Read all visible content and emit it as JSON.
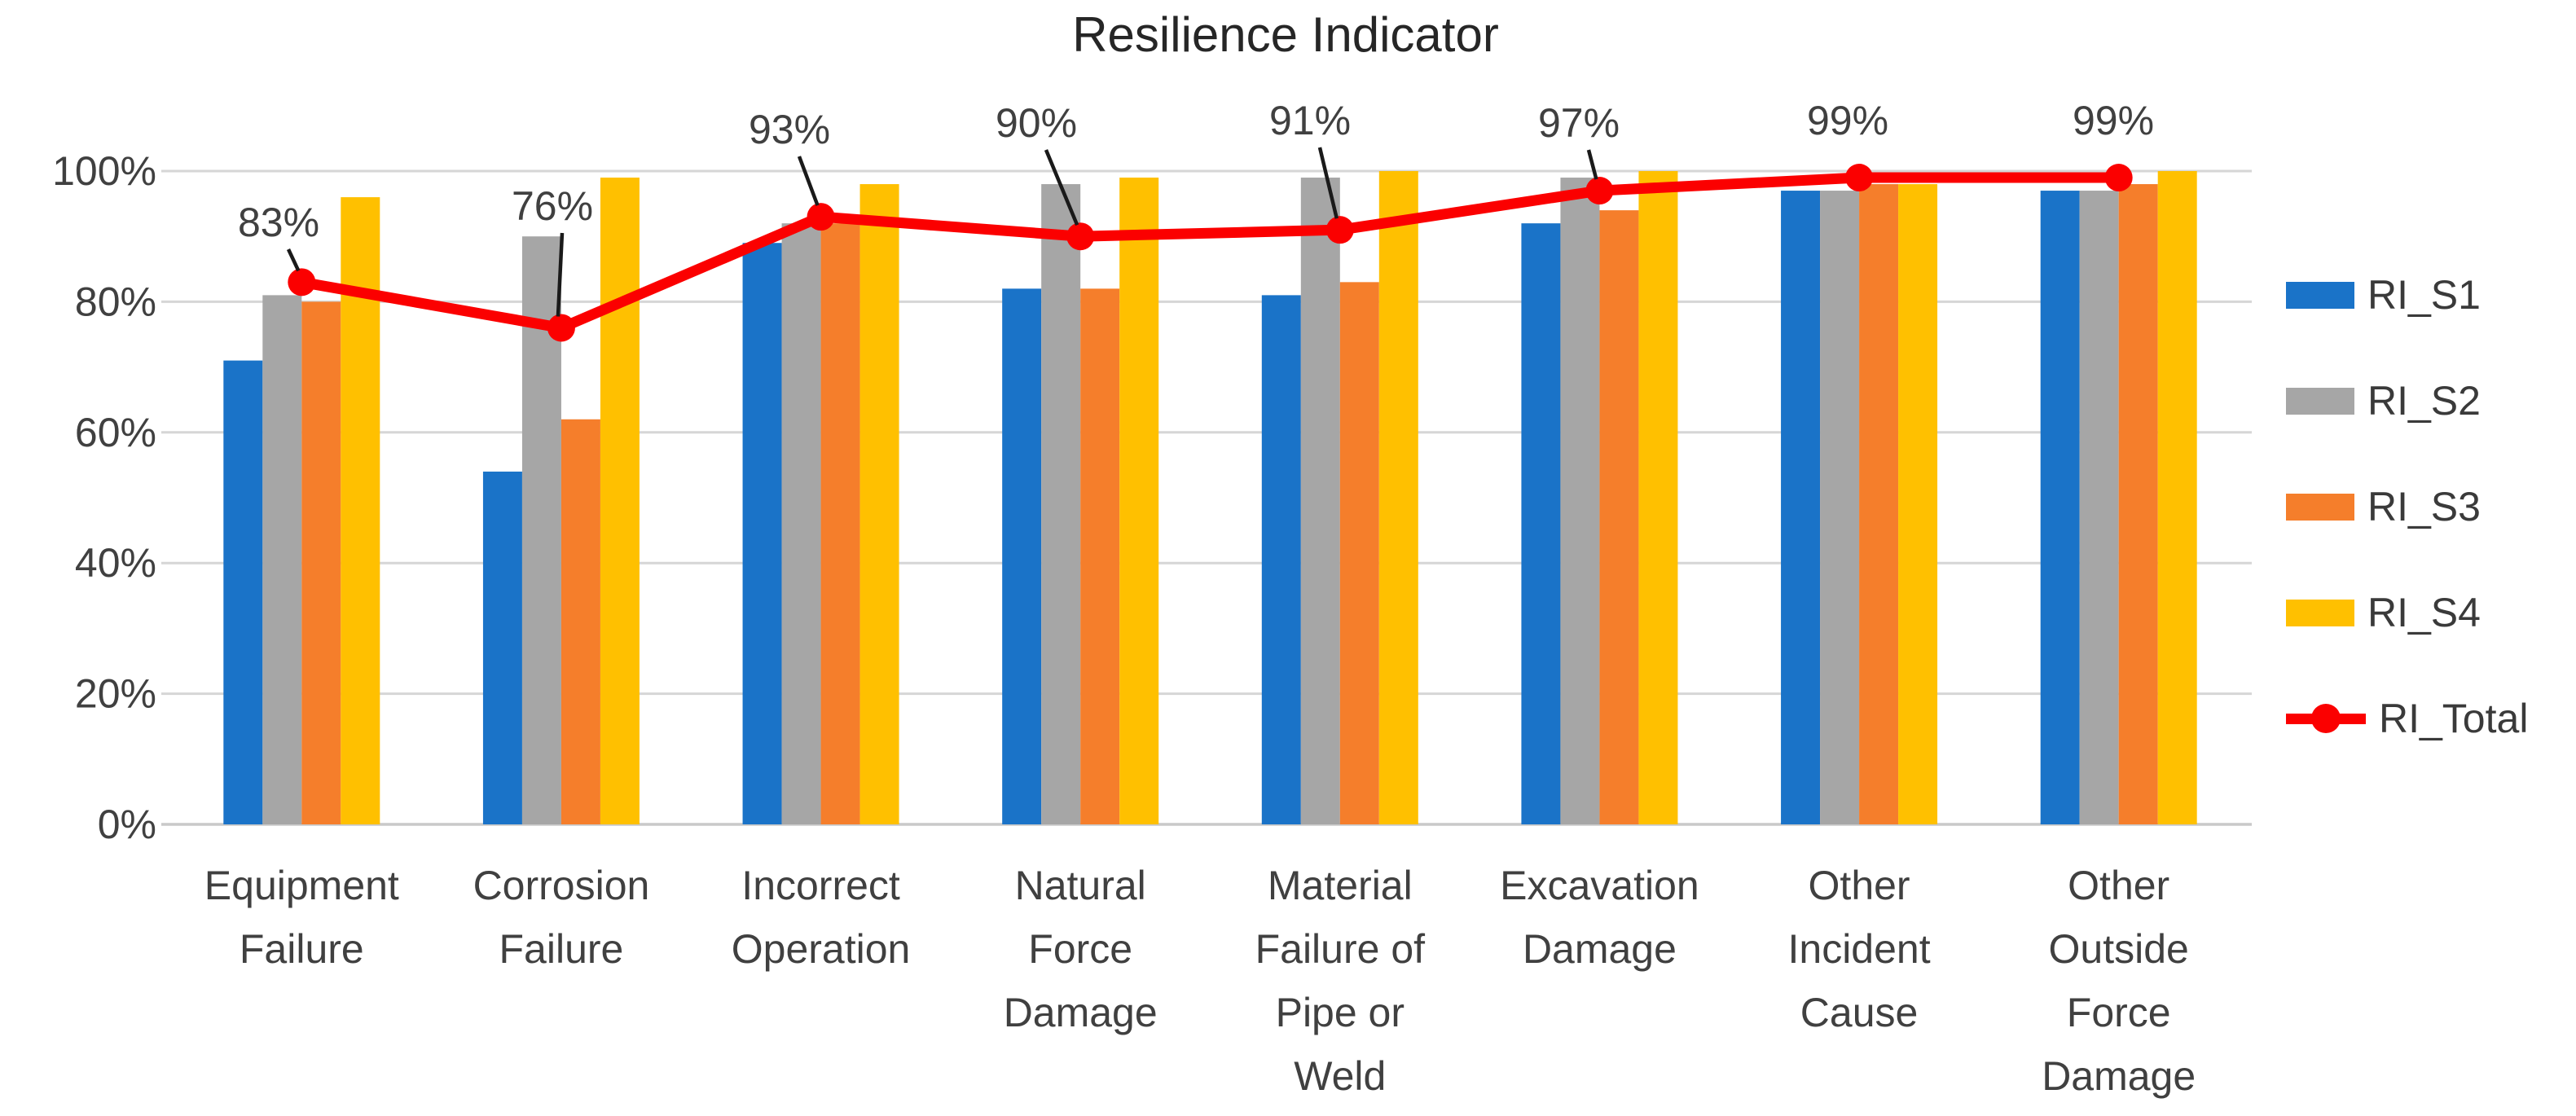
{
  "title": "Resilience Indicator",
  "chart_data": {
    "type": "bar",
    "subtype": "grouped-bars-with-line-overlay",
    "title": "Resilience Indicator",
    "xlabel": "",
    "ylabel": "",
    "ylim": [
      0,
      100
    ],
    "grid": true,
    "legend_position": "right",
    "y_ticks": [
      "100%",
      "80%",
      "60%",
      "40%",
      "20%",
      "0%"
    ],
    "y_tick_values": [
      100,
      80,
      60,
      40,
      20,
      0
    ],
    "categories": [
      "Equipment Failure",
      "Corrosion Failure",
      "Incorrect Operation",
      "Natural Force Damage",
      "Material Failure of Pipe or Weld",
      "Excavation Damage",
      "Other Incident Cause",
      "Other Outside Force Damage"
    ],
    "category_lines": [
      [
        "Equipment",
        "Failure"
      ],
      [
        "Corrosion",
        "Failure"
      ],
      [
        "Incorrect",
        "Operation"
      ],
      [
        "Natural",
        "Force",
        "Damage"
      ],
      [
        "Material",
        "Failure of",
        "Pipe or",
        "Weld"
      ],
      [
        "Excavation",
        "Damage"
      ],
      [
        "Other",
        "Incident",
        "Cause"
      ],
      [
        "Other",
        "Outside",
        "Force",
        "Damage"
      ]
    ],
    "series": [
      {
        "name": "RI_S1",
        "type": "bar",
        "color": "#1A73C8",
        "values": [
          71,
          54,
          89,
          82,
          81,
          92,
          97,
          97
        ]
      },
      {
        "name": "RI_S2",
        "type": "bar",
        "color": "#A6A6A6",
        "values": [
          81,
          90,
          92,
          98,
          99,
          99,
          97,
          97
        ]
      },
      {
        "name": "RI_S3",
        "type": "bar",
        "color": "#F57E2B",
        "values": [
          80,
          62,
          92,
          82,
          83,
          94,
          98,
          98
        ]
      },
      {
        "name": "RI_S4",
        "type": "bar",
        "color": "#FFC000",
        "values": [
          96,
          99,
          98,
          99,
          100,
          100,
          98,
          100
        ]
      },
      {
        "name": "RI_Total",
        "type": "line",
        "color": "#FB0000",
        "values": [
          83,
          76,
          93,
          90,
          91,
          97,
          99,
          99
        ]
      }
    ],
    "data_labels": [
      "83%",
      "76%",
      "93%",
      "90%",
      "91%",
      "97%",
      "99%",
      "99%"
    ]
  },
  "colors": {
    "background": "#FFFFFF",
    "grid": "#D6D6D6",
    "axis_line": "#C9C9C9",
    "text": "#404040",
    "title_text": "#262626",
    "leader_line": "#1A1A1A"
  }
}
